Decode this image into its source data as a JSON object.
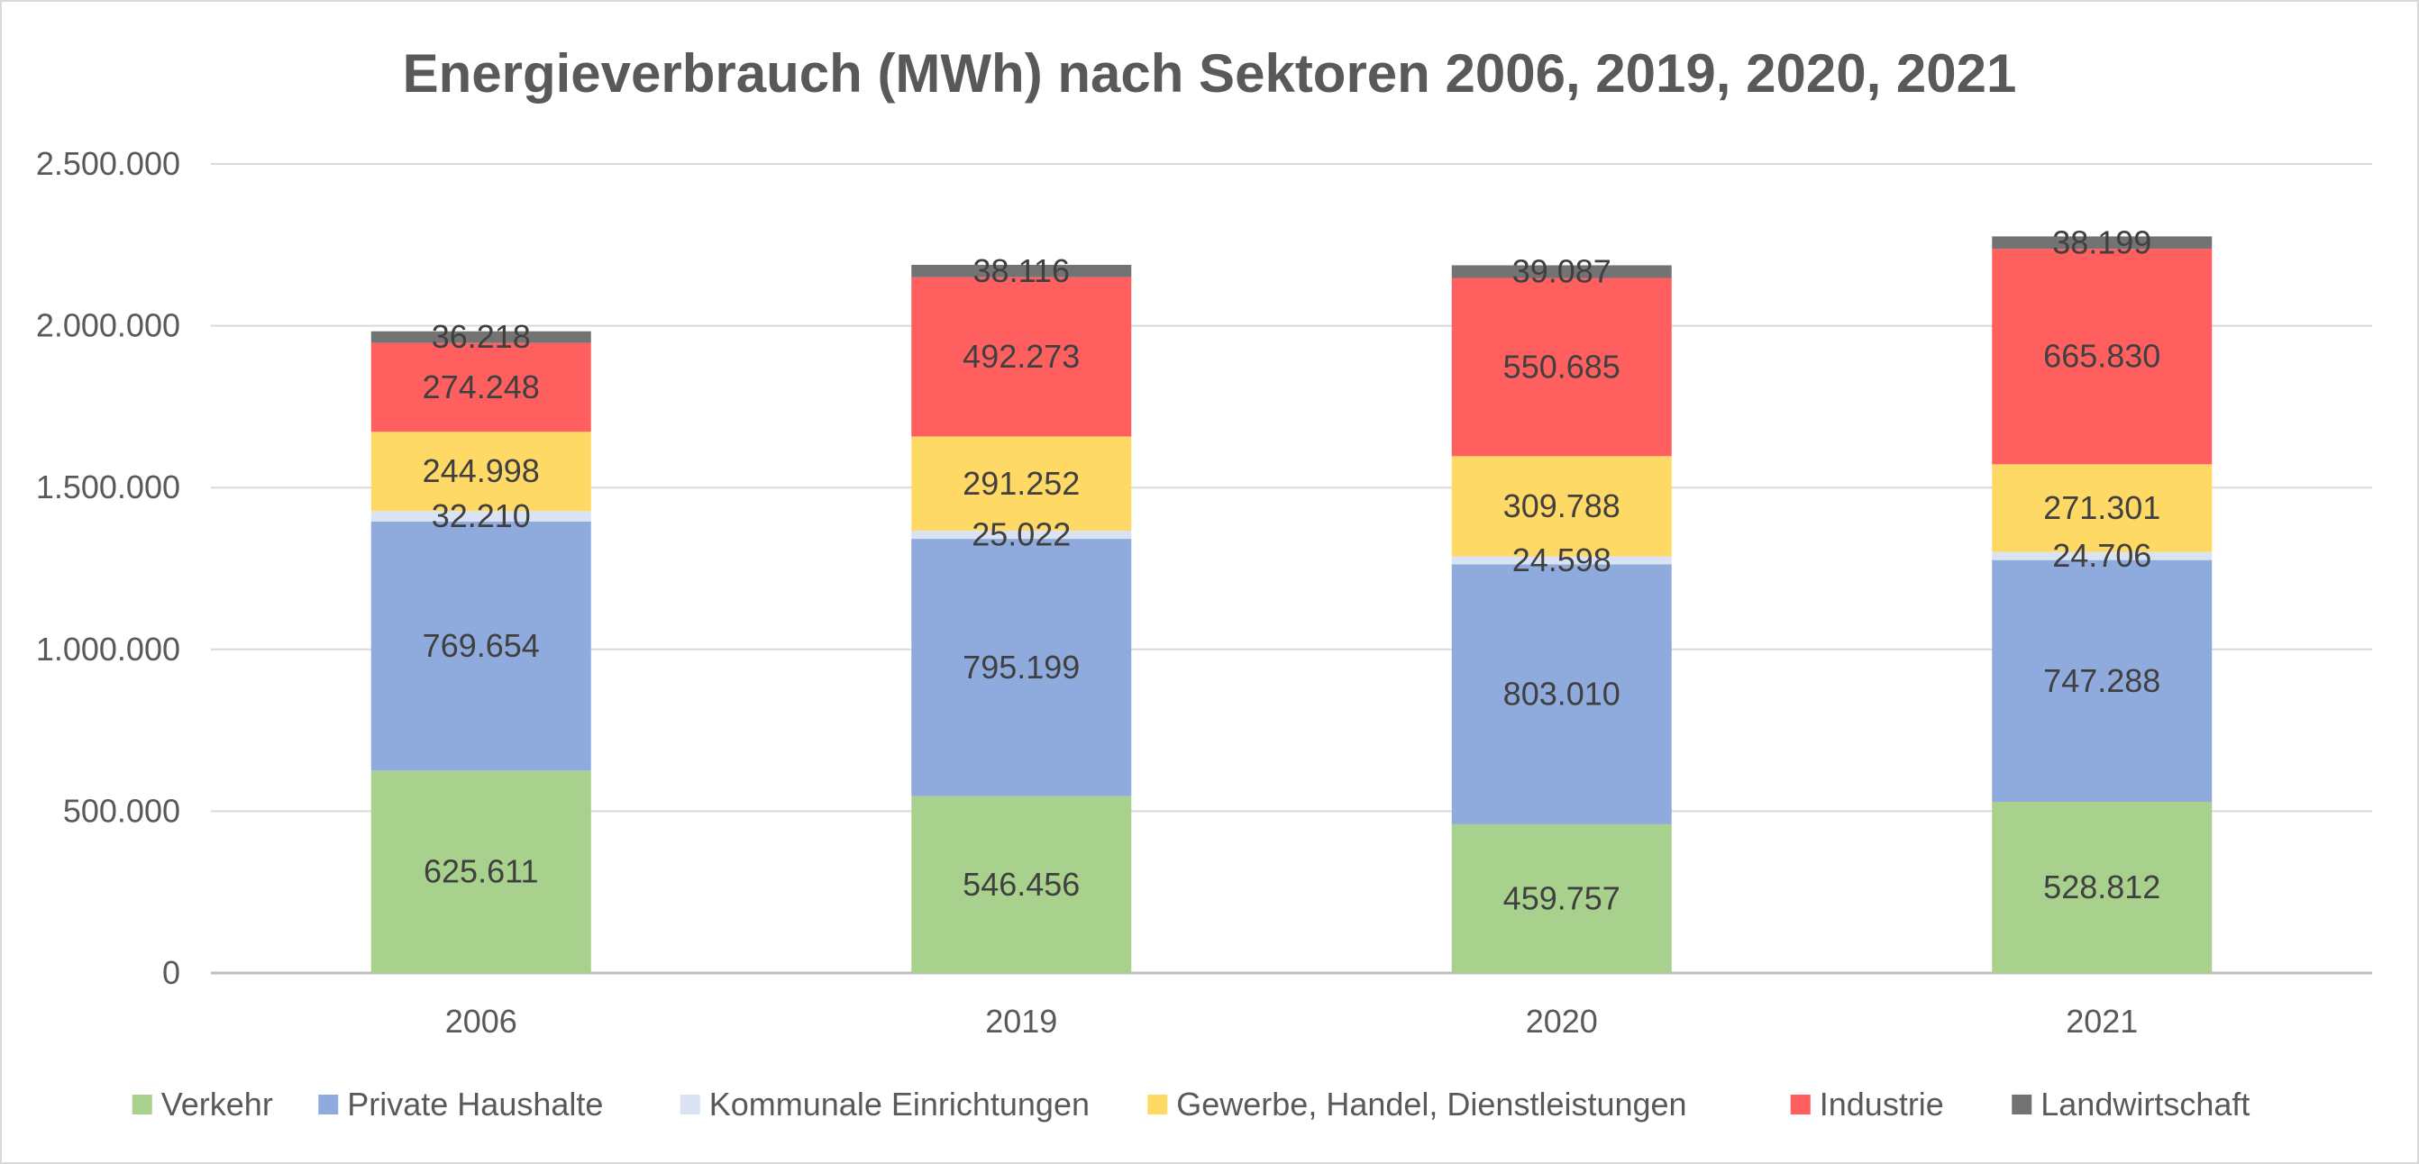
{
  "chart_data": {
    "type": "bar",
    "stacked": true,
    "title": "Energieverbrauch (MWh) nach Sektoren 2006, 2019, 2020, 2021",
    "xlabel": "",
    "ylabel": "",
    "categories": [
      "2006",
      "2019",
      "2020",
      "2021"
    ],
    "ylim": [
      0,
      2500000
    ],
    "yticks": [
      0,
      500000,
      1000000,
      1500000,
      2000000,
      2500000
    ],
    "ytick_labels": [
      "0",
      "500.000",
      "1.000.000",
      "1.500.000",
      "2.000.000",
      "2.500.000"
    ],
    "grid": true,
    "legend_position": "bottom",
    "series": [
      {
        "name": "Verkehr",
        "color": "#a9d18e",
        "values": [
          625611,
          546456,
          459757,
          528812
        ],
        "labels": [
          "625.611",
          "546.456",
          "459.757",
          "528.812"
        ]
      },
      {
        "name": "Private Haushalte",
        "color": "#8faadc",
        "values": [
          769654,
          795199,
          803010,
          747288
        ],
        "labels": [
          "769.654",
          "795.199",
          "803.010",
          "747.288"
        ]
      },
      {
        "name": "Kommunale Einrichtungen",
        "color": "#dae3f3",
        "values": [
          32210,
          25022,
          24598,
          24706
        ],
        "labels": [
          "32.210",
          "25.022",
          "24.598",
          "24.706"
        ]
      },
      {
        "name": "Gewerbe, Handel, Dienstleistungen",
        "color": "#ffd966",
        "values": [
          244998,
          291252,
          309788,
          271301
        ],
        "labels": [
          "244.998",
          "291.252",
          "309.788",
          "271.301"
        ]
      },
      {
        "name": "Industrie",
        "color": "#ff5f5f",
        "values": [
          274248,
          492273,
          550685,
          665830
        ],
        "labels": [
          "274.248",
          "492.273",
          "550.685",
          "665.830"
        ]
      },
      {
        "name": "Landwirtschaft",
        "color": "#737373",
        "values": [
          36218,
          38116,
          39087,
          38199
        ],
        "labels": [
          "36.218",
          "38.116",
          "39.087",
          "38.199"
        ]
      }
    ]
  }
}
